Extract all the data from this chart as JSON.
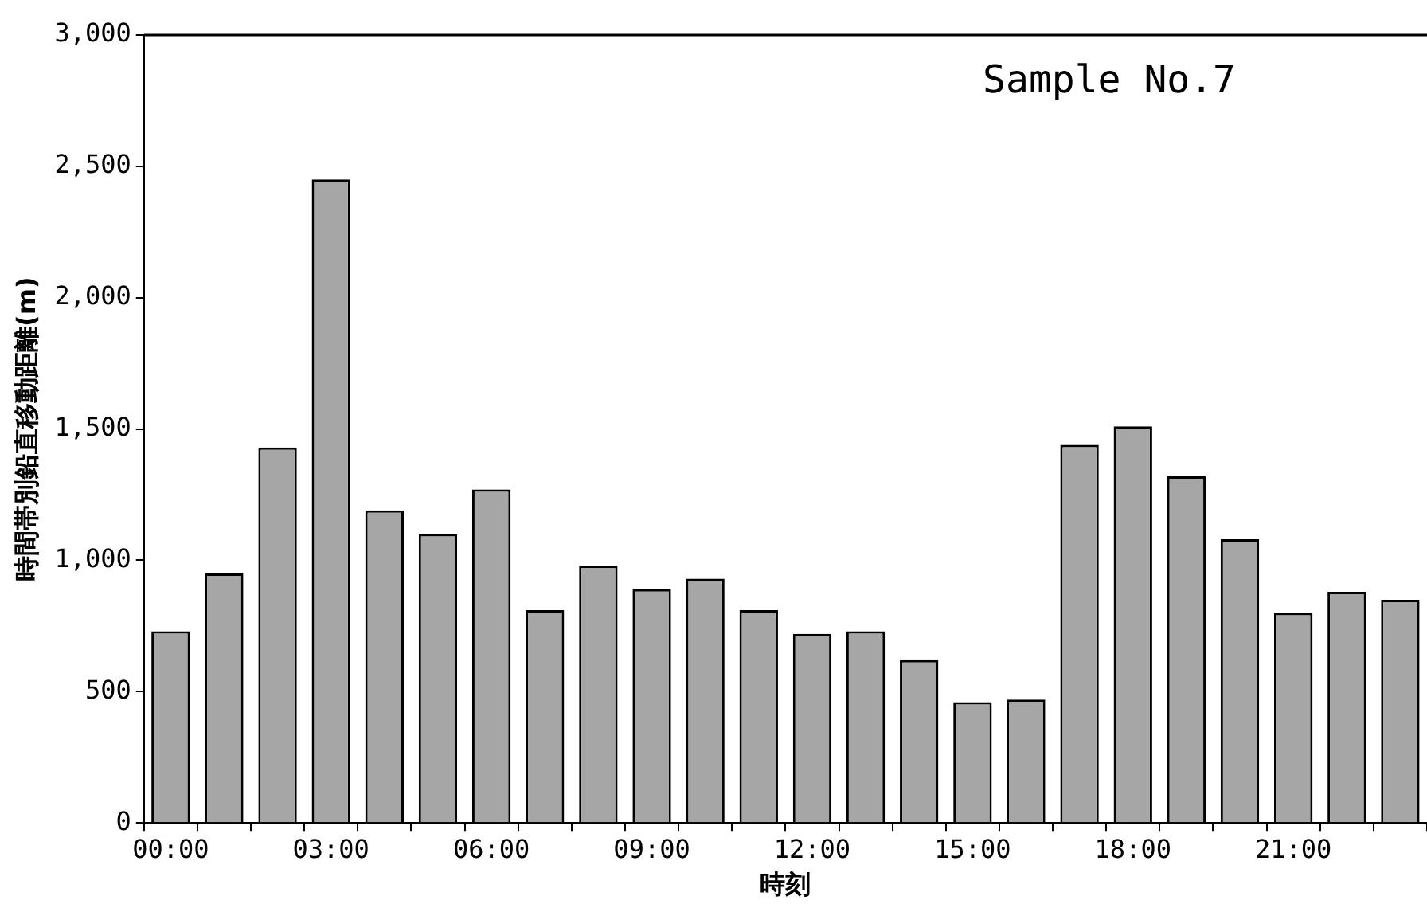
{
  "chart_data": {
    "type": "bar",
    "xlabel": "時刻",
    "ylabel": "時間帯別鉛直移動距離(m)",
    "annotations": [
      "Sample No.7"
    ],
    "categories": [
      "00:00",
      null,
      null,
      "03:00",
      null,
      null,
      "06:00",
      null,
      null,
      "09:00",
      null,
      null,
      "12:00",
      null,
      null,
      "15:00",
      null,
      null,
      "18:00",
      null,
      null,
      "21:00",
      null,
      null
    ],
    "values": [
      730,
      950,
      1430,
      2450,
      1190,
      1100,
      1270,
      810,
      980,
      890,
      930,
      810,
      720,
      730,
      620,
      460,
      470,
      1440,
      1510,
      1320,
      1080,
      800,
      880,
      850
    ],
    "color": "#a6a6a6",
    "ylim": [
      0,
      3000
    ],
    "yticks": [
      0,
      500,
      {
        "value": 1000,
        "label": "1,000"
      },
      {
        "value": 1500,
        "label": "1,500"
      },
      {
        "value": 2000,
        "label": "2,000"
      },
      {
        "value": 2500,
        "label": "2,500"
      },
      {
        "value": 3000,
        "label": "3,000"
      }
    ],
    "grid": false,
    "legend": false
  }
}
